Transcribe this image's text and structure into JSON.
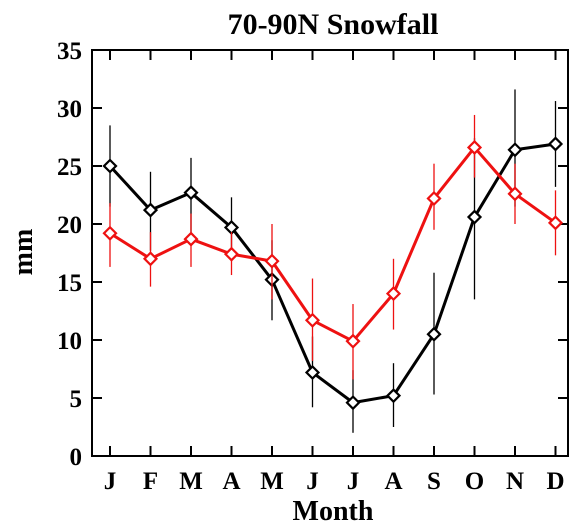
{
  "chart_data": {
    "type": "line",
    "title": "70-90N Snowfall",
    "xlabel": "Month",
    "ylabel": "mm",
    "categories": [
      "J",
      "F",
      "M",
      "A",
      "M",
      "J",
      "J",
      "A",
      "S",
      "O",
      "N",
      "D"
    ],
    "yticks": [
      "0",
      "5",
      "10",
      "15",
      "20",
      "25",
      "30",
      "35"
    ],
    "ylim": [
      0,
      35
    ],
    "grid": false,
    "legend": "none",
    "series": [
      {
        "color": "#000000",
        "marker": "diamond",
        "values": [
          25.0,
          21.2,
          22.7,
          19.7,
          15.2,
          7.2,
          4.6,
          5.2,
          10.5,
          20.6,
          26.4,
          26.9
        ],
        "error_low": [
          21.5,
          17.7,
          19.3,
          16.9,
          11.7,
          4.2,
          2.0,
          2.5,
          5.3,
          13.5,
          21.5,
          23.2
        ],
        "error_high": [
          28.5,
          24.5,
          25.7,
          22.3,
          18.6,
          10.3,
          7.4,
          8.0,
          15.8,
          27.4,
          31.6,
          30.6
        ]
      },
      {
        "color": "#ee1111",
        "marker": "diamond",
        "values": [
          19.2,
          17.0,
          18.7,
          17.4,
          16.8,
          11.7,
          9.9,
          14.0,
          22.2,
          26.6,
          22.6,
          20.1
        ],
        "error_low": [
          16.3,
          14.6,
          16.3,
          15.6,
          13.5,
          8.2,
          6.6,
          10.9,
          19.5,
          24.0,
          20.0,
          17.3
        ],
        "error_high": [
          21.8,
          19.3,
          20.9,
          19.3,
          20.0,
          15.3,
          13.1,
          17.0,
          25.2,
          29.4,
          25.2,
          22.9
        ]
      }
    ]
  }
}
